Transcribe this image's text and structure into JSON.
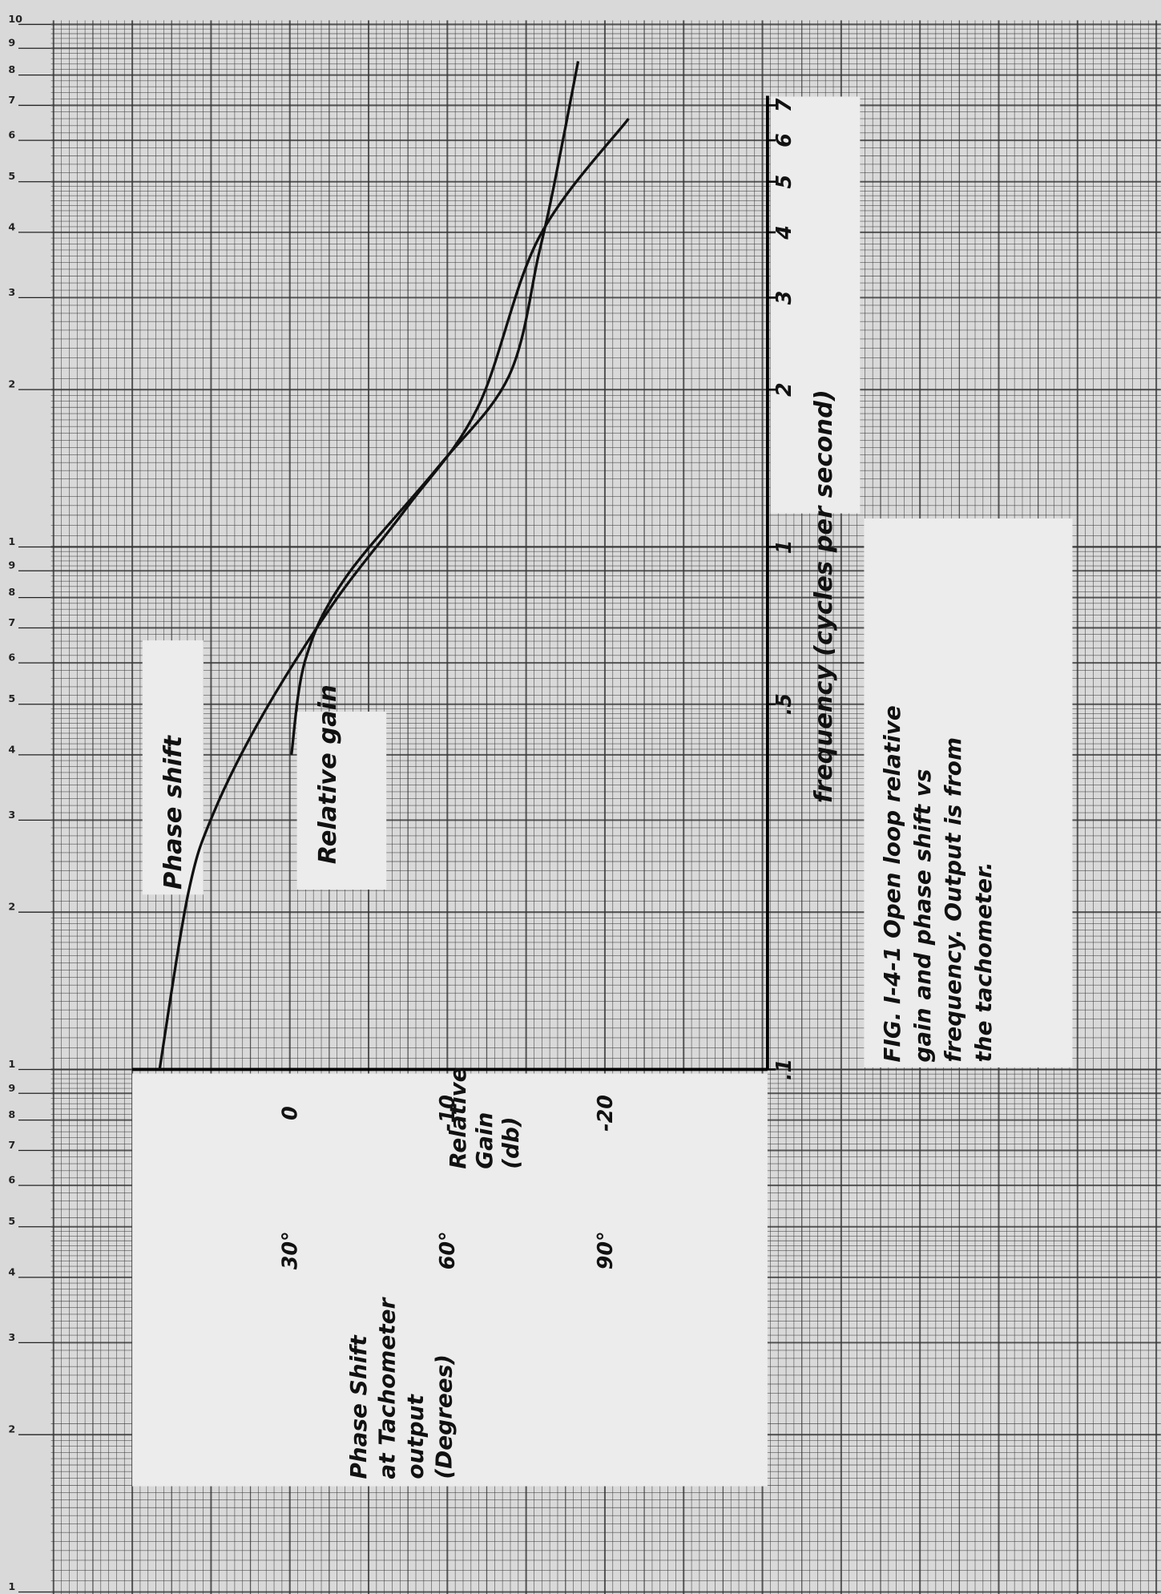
{
  "chart_data": {
    "type": "line",
    "log_x": true,
    "xlabel": "frequency (cycles per second)",
    "xlim": [
      0.1,
      7.3
    ],
    "xticks": [
      {
        "value": 0.1,
        "label": ".1"
      },
      {
        "value": 0.5,
        "label": ".5"
      },
      1,
      2,
      3,
      4,
      5,
      6,
      7
    ],
    "ylabel": [
      "Relative",
      "Gain",
      "(db)"
    ],
    "ylim": [
      10,
      -30
    ],
    "yticks": [
      0,
      -10,
      -20
    ],
    "y2label": [
      "Phase Shift",
      "at Tachometer",
      "output",
      "(Degrees)"
    ],
    "y2lim": [
      0,
      120
    ],
    "y2ticks": [
      {
        "value": 30,
        "label": "30°"
      },
      {
        "value": 60,
        "label": "60°"
      },
      {
        "value": 90,
        "label": "90°"
      }
    ],
    "caption": [
      "FIG. I-4-1 Open loop relative",
      "gain and phase shift vs",
      "frequency. Output is from",
      "the tachometer."
    ],
    "paper_scale": [
      [
        1,
        2,
        3,
        4,
        5,
        6,
        7,
        8,
        9,
        10
      ],
      [
        1,
        2,
        3,
        4,
        5,
        6,
        7,
        8,
        9
      ],
      [
        1,
        2,
        3,
        4,
        5,
        6,
        7,
        8,
        9
      ]
    ],
    "series": [
      {
        "name": "Phase shift",
        "color": "#111111",
        "axis": "y2",
        "x": [
          0.1,
          0.216,
          0.31,
          0.484,
          0.79,
          1.19,
          1.85,
          3.9,
          6.6
        ],
        "values": [
          5.2,
          10.6,
          15.5,
          25.2,
          38.7,
          52.3,
          65.8,
          77.4,
          94.5
        ]
      },
      {
        "name": "Relative gain",
        "color": "#111111",
        "x": [
          0.4,
          0.61,
          0.87,
          1.42,
          2.12,
          3.63,
          4.97,
          8.5
        ],
        "values": [
          -0.1,
          -1.0,
          -3.5,
          -9.4,
          -13.9,
          -15.8,
          -16.8,
          -18.3
        ]
      }
    ]
  }
}
